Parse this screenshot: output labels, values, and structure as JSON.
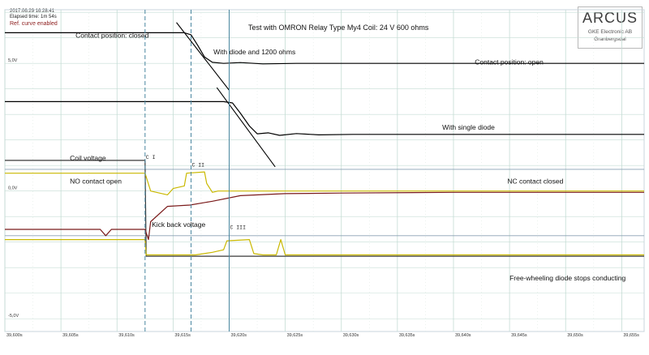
{
  "header": {
    "date_time": "2017.06.29    16:28:41",
    "elapsed": "Elapsed time: 1m 54s",
    "ref_curve": "Ref. curve enabled"
  },
  "logo": {
    "name": "ARCUS",
    "company": "GKE Electronic AB",
    "city": "Granbergsdal"
  },
  "chart_data": {
    "type": "line",
    "title": "Test with OMRON Relay Type My4 Coil: 24 V 600 ohms",
    "xlabel": "",
    "ylabel": "",
    "xlim": [
      39.6,
      39.657
    ],
    "ylim": [
      -5.5,
      7.1
    ],
    "grid": true,
    "x_tick_labels": [
      "39,600s",
      "39,605s",
      "39,610s",
      "39,615s",
      "39,620s",
      "39,625s",
      "39,630s",
      "39,635s",
      "39,640s",
      "39,645s",
      "39,650s",
      "39,655s"
    ],
    "x_ticks": [
      39.6,
      39.605,
      39.61,
      39.615,
      39.62,
      39.625,
      39.63,
      39.635,
      39.64,
      39.645,
      39.65,
      39.655
    ],
    "y_tick_labels": [
      "5,0V",
      "0,0V",
      "-5,0V"
    ],
    "y_ticks": [
      5.0,
      0.0,
      -5.0
    ],
    "cursors": [
      {
        "label": "C I",
        "x": 39.6125,
        "style": "dashed"
      },
      {
        "label": "C II",
        "x": 39.6166,
        "style": "dashed"
      },
      {
        "label": "C III",
        "x": 39.62,
        "style": "solid"
      }
    ],
    "annotations": [
      {
        "text": "Contact position: closed",
        "x": 39.6063,
        "y": 6.0
      },
      {
        "text": "With diode and 1200 ohms",
        "x": 39.6186,
        "y": 5.35
      },
      {
        "text": "Contact position: open",
        "x": 39.6419,
        "y": 4.95
      },
      {
        "text": "With single diode",
        "x": 39.639,
        "y": 2.4
      },
      {
        "text": "Coil voltage",
        "x": 39.6058,
        "y": 1.2
      },
      {
        "text": "NO contact open",
        "x": 39.6058,
        "y": 0.3
      },
      {
        "text": "NC contact closed",
        "x": 39.6448,
        "y": 0.3
      },
      {
        "text": "Kick back voltage",
        "x": 39.6131,
        "y": -1.4
      },
      {
        "text": "Free-wheeling diode stops conducting",
        "x": 39.645,
        "y": -3.5
      }
    ],
    "series": [
      {
        "color": "#000000",
        "x": [
          39.6,
          39.616,
          39.6166,
          39.6172,
          39.6178,
          39.6185,
          39.6195,
          39.621,
          39.623,
          39.626,
          39.657
        ],
        "y": [
          6.2,
          6.2,
          6.12,
          5.7,
          5.25,
          5.04,
          5.0,
          5.03,
          4.98,
          5.0,
          5.0
        ]
      },
      {
        "color": "#000000",
        "x": [
          39.6,
          39.6195,
          39.6203,
          39.621,
          39.6218,
          39.6225,
          39.6235,
          39.6245,
          39.626,
          39.628,
          39.631,
          39.657
        ],
        "y": [
          3.5,
          3.5,
          3.45,
          3.05,
          2.55,
          2.24,
          2.28,
          2.18,
          2.25,
          2.2,
          2.22,
          2.22
        ]
      },
      {
        "color": "#3a3a3a",
        "x": [
          39.6,
          39.6125,
          39.6126,
          39.657
        ],
        "y": [
          1.2,
          1.2,
          -2.55,
          -2.55
        ]
      },
      {
        "color": "#7a1a1a",
        "x": [
          39.6,
          39.6085,
          39.609,
          39.6095,
          39.6125,
          39.6128,
          39.613,
          39.6145,
          39.6165,
          39.6185,
          39.621,
          39.625,
          39.63,
          39.64,
          39.657
        ],
        "y": [
          -1.5,
          -1.5,
          -1.75,
          -1.5,
          -1.5,
          -1.9,
          -1.2,
          -0.6,
          -0.55,
          -0.4,
          -0.18,
          -0.1,
          -0.08,
          -0.05,
          -0.05
        ]
      },
      {
        "color": "#c9b800",
        "x": [
          39.6,
          39.6125,
          39.613,
          39.6145,
          39.615,
          39.616,
          39.6162,
          39.6178,
          39.618,
          39.6185,
          39.619,
          39.6195,
          39.657
        ],
        "y": [
          0.7,
          0.7,
          0.0,
          -0.15,
          0.1,
          0.2,
          0.7,
          0.75,
          0.3,
          -0.05,
          0.0,
          0.0,
          0.0
        ]
      },
      {
        "color": "#c9b800",
        "x": [
          39.6,
          39.6125,
          39.6126,
          39.617,
          39.6185,
          39.6195,
          39.6198,
          39.6218,
          39.6222,
          39.623,
          39.6242,
          39.6246,
          39.625,
          39.657
        ],
        "y": [
          -1.9,
          -1.9,
          -2.5,
          -2.5,
          -2.4,
          -2.3,
          -1.95,
          -1.9,
          -2.45,
          -2.5,
          -2.5,
          -1.9,
          -2.5,
          -2.5
        ]
      },
      {
        "color": "#8aa0b4",
        "x": [
          39.6,
          39.657
        ],
        "y": [
          0.85,
          0.85
        ]
      },
      {
        "color": "#8aa0b4",
        "x": [
          39.6,
          39.657
        ],
        "y": [
          -1.75,
          -1.75
        ]
      }
    ],
    "fit_lines": [
      {
        "x": [
          39.6153,
          39.62
        ],
        "y": [
          6.6,
          3.95
        ]
      },
      {
        "x": [
          39.6189,
          39.6241
        ],
        "y": [
          4.05,
          0.95
        ]
      }
    ]
  }
}
